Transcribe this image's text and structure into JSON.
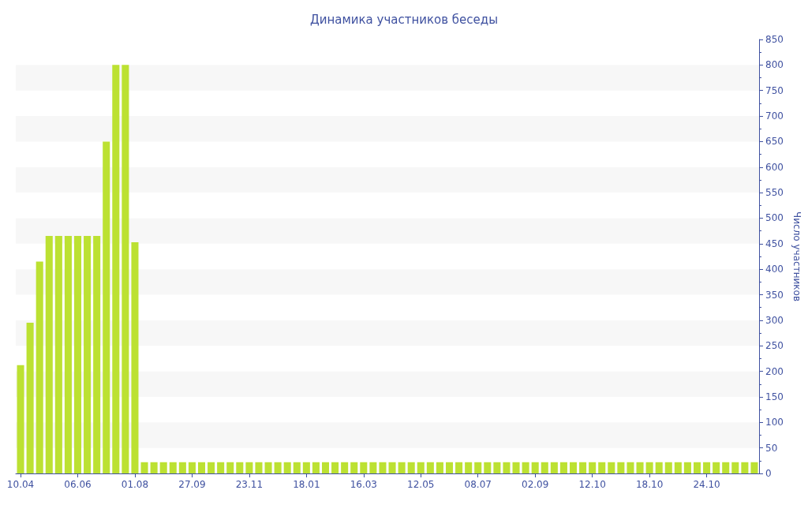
{
  "chart_data": {
    "type": "bar",
    "title": "Динамика участников беседы",
    "ylabel": "Число участников",
    "categories": [
      "10.04",
      null,
      null,
      null,
      null,
      null,
      "06.06",
      null,
      null,
      null,
      null,
      null,
      "01.08",
      null,
      null,
      null,
      null,
      null,
      "27.09",
      null,
      null,
      null,
      null,
      null,
      "23.11",
      null,
      null,
      null,
      null,
      null,
      "18.01",
      null,
      null,
      null,
      null,
      null,
      "16.03",
      null,
      null,
      null,
      null,
      null,
      "12.05",
      null,
      null,
      null,
      null,
      null,
      "08.07",
      null,
      null,
      null,
      null,
      null,
      "02.09",
      null,
      null,
      null,
      null,
      null,
      "12.10",
      null,
      null,
      null,
      null,
      null,
      "18.10",
      null,
      null,
      null,
      null,
      null,
      "24.10",
      null,
      null,
      null,
      null,
      null
    ],
    "values": [
      212,
      295,
      415,
      465,
      465,
      465,
      465,
      465,
      465,
      650,
      800,
      800,
      453,
      22,
      22,
      22,
      22,
      22,
      22,
      22,
      22,
      22,
      22,
      22,
      22,
      22,
      22,
      22,
      22,
      22,
      22,
      22,
      22,
      22,
      22,
      22,
      22,
      22,
      22,
      22,
      22,
      22,
      22,
      22,
      22,
      22,
      22,
      22,
      22,
      22,
      22,
      22,
      22,
      22,
      22,
      22,
      22,
      22,
      22,
      22,
      22,
      22,
      22,
      22,
      22,
      22,
      22,
      22,
      22,
      22,
      22,
      22,
      22,
      22,
      22,
      22,
      22,
      22
    ],
    "color": "#bce132",
    "ylim": [
      0,
      850
    ],
    "yticks": [
      0,
      50,
      100,
      150,
      200,
      250,
      300,
      350,
      400,
      450,
      500,
      550,
      600,
      650,
      700,
      750,
      800,
      850
    ]
  }
}
